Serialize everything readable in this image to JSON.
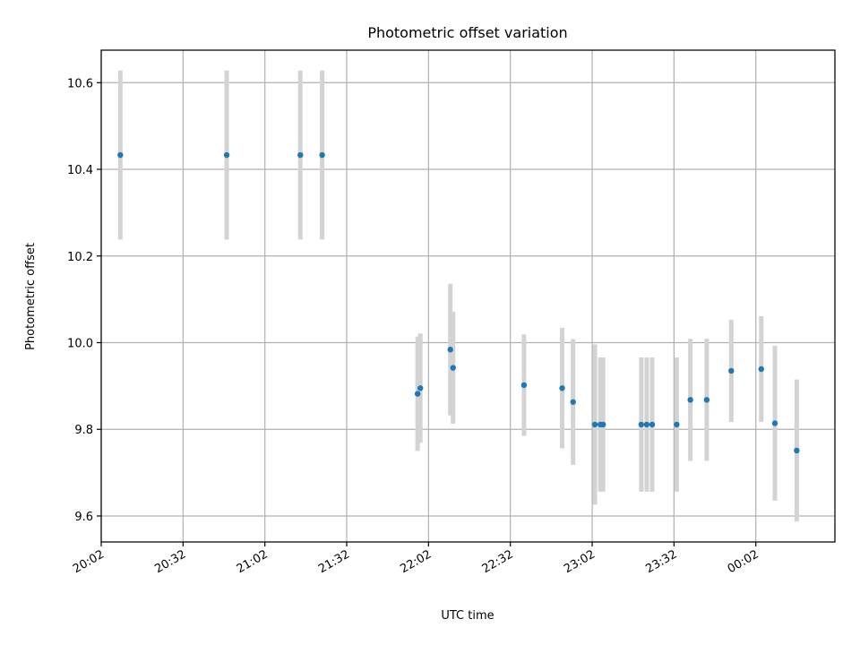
{
  "chart_data": {
    "type": "scatter",
    "title": "Photometric offset variation",
    "xlabel": "UTC time",
    "ylabel": "Photometric offset",
    "x_tick_labels": [
      "20:02",
      "20:32",
      "21:02",
      "21:32",
      "22:02",
      "22:32",
      "23:02",
      "23:32",
      "00:02"
    ],
    "x_ticks": [
      "20:02",
      "20:32",
      "21:02",
      "21:32",
      "22:02",
      "22:32",
      "23:02",
      "23:32",
      "00:02"
    ],
    "xlim": [
      "20:02",
      "00:31"
    ],
    "ylim": [
      9.54,
      10.675
    ],
    "y_ticks": [
      9.6,
      9.8,
      10.0,
      10.2,
      10.4,
      10.6
    ],
    "y_tick_labels": [
      "9.6",
      "9.8",
      "10.0",
      "10.2",
      "10.4",
      "10.6"
    ],
    "grid": true,
    "colors": {
      "points": "#1f77b4",
      "error_bars": "#d3d3d3",
      "grid": "#b0b0b0"
    },
    "points": [
      {
        "t": "20:09",
        "y": 10.433,
        "err": 0.195
      },
      {
        "t": "20:48",
        "y": 10.433,
        "err": 0.195
      },
      {
        "t": "21:15",
        "y": 10.433,
        "err": 0.195
      },
      {
        "t": "21:23",
        "y": 10.433,
        "err": 0.195
      },
      {
        "t": "21:58",
        "y": 9.882,
        "err": 0.132
      },
      {
        "t": "21:59",
        "y": 9.895,
        "err": 0.126
      },
      {
        "t": "22:10",
        "y": 9.984,
        "err": 0.152
      },
      {
        "t": "22:11",
        "y": 9.942,
        "err": 0.129
      },
      {
        "t": "22:37",
        "y": 9.902,
        "err": 0.117
      },
      {
        "t": "22:51",
        "y": 9.895,
        "err": 0.139
      },
      {
        "t": "22:55",
        "y": 9.863,
        "err": 0.145
      },
      {
        "t": "23:03",
        "y": 9.811,
        "err": 0.185
      },
      {
        "t": "23:05",
        "y": 9.811,
        "err": 0.155
      },
      {
        "t": "23:06",
        "y": 9.811,
        "err": 0.155
      },
      {
        "t": "23:20",
        "y": 9.811,
        "err": 0.155
      },
      {
        "t": "23:22",
        "y": 9.811,
        "err": 0.155
      },
      {
        "t": "23:24",
        "y": 9.811,
        "err": 0.155
      },
      {
        "t": "23:33",
        "y": 9.811,
        "err": 0.155
      },
      {
        "t": "23:38",
        "y": 9.868,
        "err": 0.141
      },
      {
        "t": "23:44",
        "y": 9.868,
        "err": 0.141
      },
      {
        "t": "23:53",
        "y": 9.935,
        "err": 0.118
      },
      {
        "t": "00:04",
        "y": 9.939,
        "err": 0.122
      },
      {
        "t": "00:09",
        "y": 9.814,
        "err": 0.179
      },
      {
        "t": "00:17",
        "y": 9.751,
        "err": 0.164
      }
    ]
  }
}
